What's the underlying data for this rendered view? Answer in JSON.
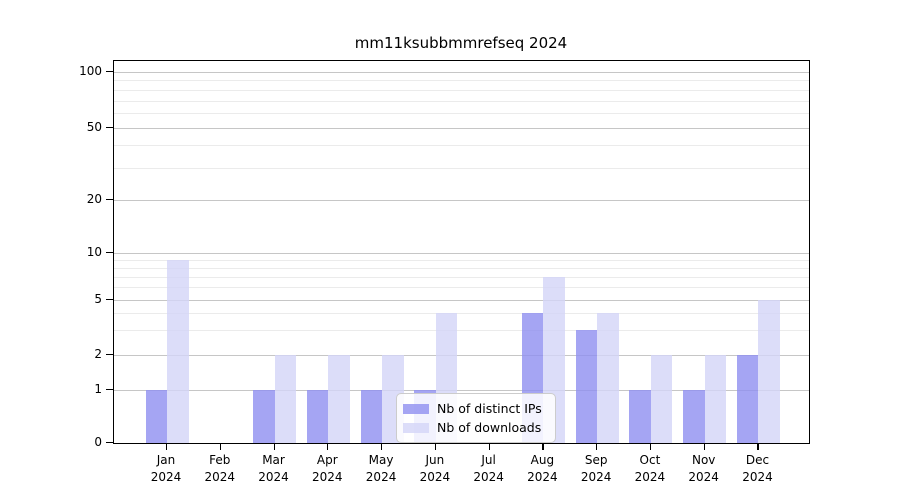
{
  "chart_data": {
    "type": "bar",
    "title": "mm11ksubbmmrefseq 2024",
    "categories": [
      "Jan 2024",
      "Feb 2024",
      "Mar 2024",
      "Apr 2024",
      "May 2024",
      "Jun 2024",
      "Jul 2024",
      "Aug 2024",
      "Sep 2024",
      "Oct 2024",
      "Nov 2024",
      "Dec 2024"
    ],
    "series": [
      {
        "name": "Nb of distinct IPs",
        "color": "#8f8ff0",
        "alpha": 0.8,
        "values": [
          1,
          0,
          1,
          1,
          1,
          1,
          0,
          4,
          3,
          1,
          1,
          2
        ]
      },
      {
        "name": "Nb of downloads",
        "color": "#d3d4f8",
        "alpha": 0.8,
        "values": [
          9,
          0,
          2,
          2,
          2,
          4,
          0,
          7,
          4,
          2,
          2,
          5
        ]
      }
    ],
    "xlabel": "",
    "ylabel": "",
    "yscale": "log-like",
    "ytick_labels": [
      "0",
      "1",
      "2",
      "5",
      "10",
      "20",
      "50",
      "100"
    ],
    "yticks": [
      0,
      1,
      2,
      5,
      10,
      20,
      50,
      100
    ],
    "minor_gridlines": [
      3,
      4,
      6,
      7,
      8,
      9,
      30,
      40,
      60,
      70,
      80,
      90
    ],
    "ylim": [
      0,
      140
    ],
    "grid": true,
    "legend_position": "lower center",
    "colors": {
      "axis": "#000000",
      "gridline_major": "#c6c6c6",
      "gridline_minor": "#ebebeb",
      "background": "#ffffff"
    }
  }
}
